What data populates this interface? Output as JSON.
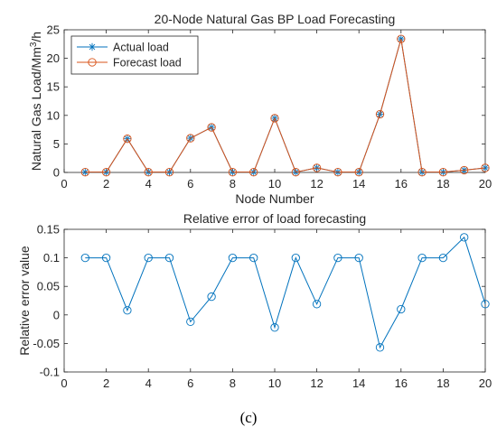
{
  "figure": {
    "caption": "(c)"
  },
  "chart_data": [
    {
      "type": "line",
      "title": "20-Node Natural Gas BP Load Forecasting",
      "xlabel": "Node Number",
      "ylabel": "Natural Gas Load/Mm³/h",
      "xlim": [
        0,
        20
      ],
      "ylim": [
        0,
        25
      ],
      "xticks": [
        0,
        2,
        4,
        6,
        8,
        10,
        12,
        14,
        16,
        18,
        20
      ],
      "yticks": [
        0,
        5,
        10,
        15,
        20,
        25
      ],
      "legend_position": "top-left",
      "grid": false,
      "x": [
        1,
        2,
        3,
        4,
        5,
        6,
        7,
        8,
        9,
        10,
        11,
        12,
        13,
        14,
        15,
        16,
        17,
        18,
        19,
        20
      ],
      "series": [
        {
          "name": "Actual load",
          "color": "#0072BD",
          "marker": "star",
          "values": [
            0.05,
            0.05,
            5.9,
            0.05,
            0.05,
            6.0,
            7.9,
            0.05,
            0.05,
            9.5,
            0.05,
            0.8,
            0.05,
            0.05,
            10.2,
            23.4,
            0.05,
            0.05,
            0.4,
            0.8
          ]
        },
        {
          "name": "Forecast load",
          "color": "#D95319",
          "marker": "circle",
          "values": [
            0.05,
            0.05,
            5.9,
            0.05,
            0.05,
            6.0,
            7.9,
            0.05,
            0.05,
            9.5,
            0.05,
            0.8,
            0.05,
            0.05,
            10.2,
            23.4,
            0.05,
            0.05,
            0.4,
            0.8
          ]
        }
      ]
    },
    {
      "type": "line",
      "title": "Relative error of load forecasting",
      "xlabel": "",
      "ylabel": "Relative error value",
      "xlim": [
        0,
        20
      ],
      "ylim": [
        -0.1,
        0.15
      ],
      "xticks": [
        0,
        2,
        4,
        6,
        8,
        10,
        12,
        14,
        16,
        18,
        20
      ],
      "yticks": [
        -0.1,
        -0.05,
        0,
        0.05,
        0.1,
        0.15
      ],
      "ytick_labels": [
        "-0.1",
        "-0.05",
        "0",
        "0.05",
        "0.1",
        "0.15"
      ],
      "grid": false,
      "x": [
        1,
        2,
        3,
        4,
        5,
        6,
        7,
        8,
        9,
        10,
        11,
        12,
        13,
        14,
        15,
        16,
        17,
        18,
        19,
        20
      ],
      "series": [
        {
          "color": "#0072BD",
          "marker": "circle",
          "values": [
            0.1,
            0.1,
            0.008,
            0.1,
            0.1,
            -0.012,
            0.032,
            0.1,
            0.1,
            -0.022,
            0.1,
            0.019,
            0.1,
            0.1,
            -0.057,
            0.01,
            0.1,
            0.1,
            0.136,
            0.019
          ]
        }
      ]
    }
  ]
}
